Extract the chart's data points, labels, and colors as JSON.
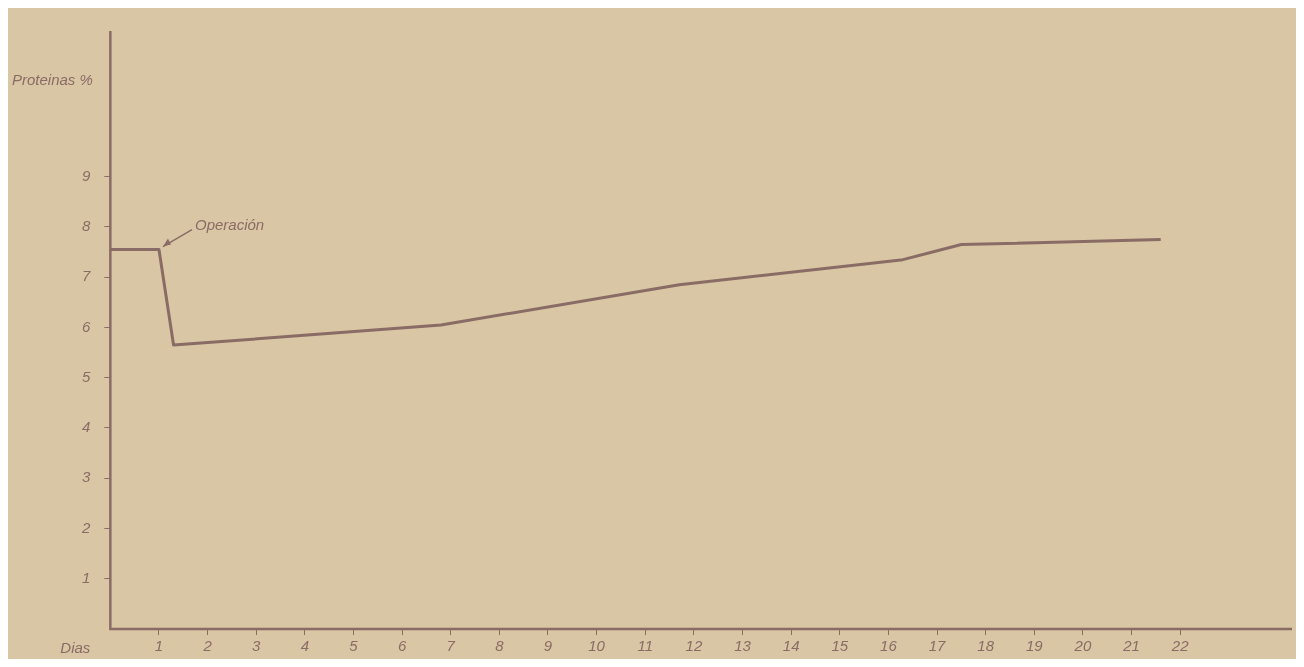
{
  "chart_data": {
    "type": "line",
    "xlabel": "Dias",
    "ylabel": "Proteinas %",
    "x": [
      0,
      1,
      1.3,
      6.8,
      11.7,
      16.3,
      17.5,
      21.6
    ],
    "series": [
      {
        "color": "#8a6c66",
        "values": [
          7.55,
          7.55,
          5.65,
          6.05,
          6.85,
          7.35,
          7.65,
          7.75
        ]
      }
    ],
    "xlim": [
      0,
      24.3
    ],
    "xticks": [
      1,
      2,
      3,
      4,
      5,
      6,
      7,
      8,
      9,
      10,
      11,
      12,
      13,
      14,
      15,
      16,
      17,
      18,
      19,
      20,
      21,
      22
    ],
    "ylim": [
      0,
      11.9
    ],
    "yticks": [
      1,
      2,
      3,
      4,
      5,
      6,
      7,
      8,
      9
    ],
    "annotations": [
      {
        "text": "Operación",
        "x": 1,
        "y": 7.55
      }
    ],
    "grid": false,
    "legend": false,
    "marker": "none",
    "line_style": "solid"
  }
}
